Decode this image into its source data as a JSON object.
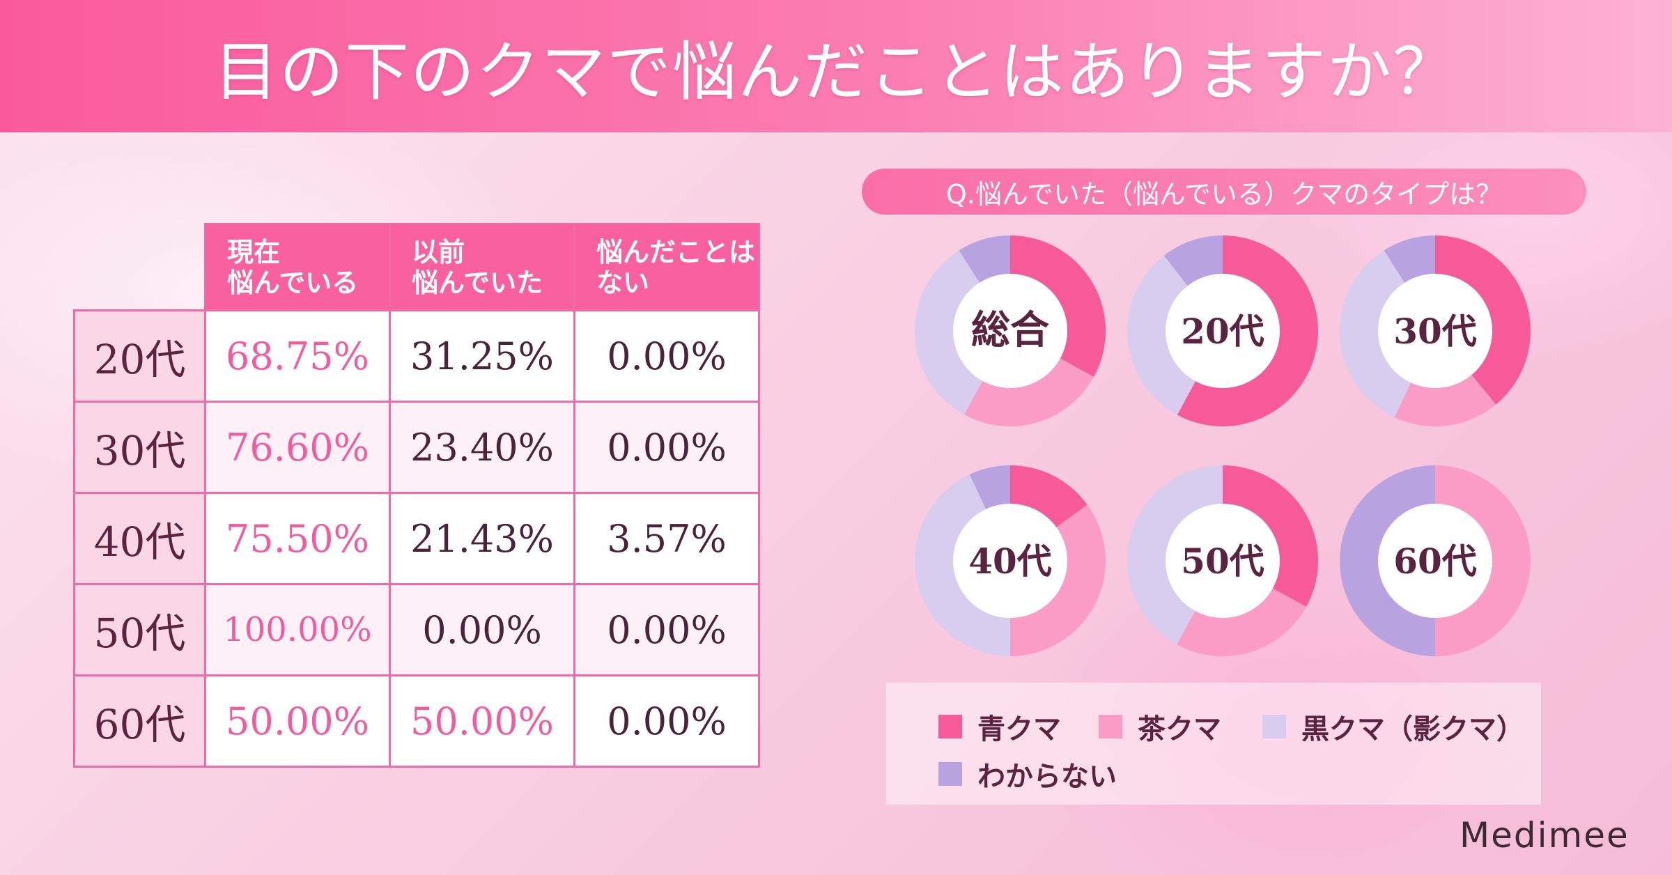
{
  "title": "目の下のクマで悩んだことはありますか？",
  "table": {
    "columns": [
      "現在\n悩んでいる",
      "以前\n悩んでいた",
      "悩んだことは\nない"
    ],
    "rows": [
      {
        "label": "20代",
        "values": [
          "68.75%",
          "31.25%",
          "0.00%"
        ]
      },
      {
        "label": "30代",
        "values": [
          "76.60%",
          "23.40%",
          "0.00%"
        ]
      },
      {
        "label": "40代",
        "values": [
          "75.50%",
          "21.43%",
          "3.57%"
        ]
      },
      {
        "label": "50代",
        "values": [
          "100.00%",
          "0.00%",
          "0.00%"
        ]
      },
      {
        "label": "60代",
        "values": [
          "50.00%",
          "50.00%",
          "0.00%"
        ]
      }
    ]
  },
  "question": "Q.悩んでいた（悩んでいる）クマのタイプは？",
  "chart_data": [
    {
      "type": "pie",
      "label": "総合",
      "categories": [
        "青クマ",
        "茶クマ",
        "黒クマ（影クマ）",
        "わからない"
      ],
      "values": [
        33,
        25,
        33,
        9
      ]
    },
    {
      "type": "pie",
      "label": "20代",
      "categories": [
        "青クマ",
        "茶クマ",
        "黒クマ（影クマ）",
        "わからない"
      ],
      "values": [
        55,
        0,
        30,
        10
      ]
    },
    {
      "type": "pie",
      "label": "30代",
      "categories": [
        "青クマ",
        "茶クマ",
        "黒クマ（影クマ）",
        "わからない"
      ],
      "values": [
        39,
        18,
        34,
        9
      ]
    },
    {
      "type": "pie",
      "label": "40代",
      "categories": [
        "青クマ",
        "茶クマ",
        "黒クマ（影クマ）",
        "わからない"
      ],
      "values": [
        15,
        35,
        43,
        7
      ]
    },
    {
      "type": "pie",
      "label": "50代",
      "categories": [
        "青クマ",
        "茶クマ",
        "黒クマ（影クマ）",
        "わからない"
      ],
      "values": [
        33,
        25,
        42,
        0
      ]
    },
    {
      "type": "pie",
      "label": "60代",
      "categories": [
        "青クマ",
        "茶クマ",
        "黒クマ（影クマ）",
        "わからない"
      ],
      "values": [
        0,
        50,
        0,
        50
      ]
    }
  ],
  "chart_order_note": "",
  "colors": {
    "blue_kuma": "#f65a99",
    "brown_kuma": "#fb9cc6",
    "black_kuma": "#d8cdef",
    "unknown": "#b9a2e0"
  },
  "legend": [
    {
      "label": "青クマ",
      "color": "#f65a99"
    },
    {
      "label": "茶クマ",
      "color": "#fb9cc6"
    },
    {
      "label": "黒クマ（影クマ）",
      "color": "#d8cdef"
    },
    {
      "label": "わからない",
      "color": "#b9a2e0"
    }
  ],
  "brand": "Medimee"
}
